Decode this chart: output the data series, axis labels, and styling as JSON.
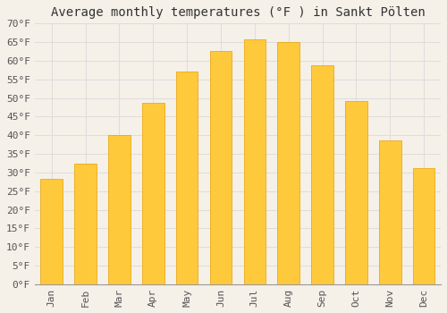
{
  "title": "Average monthly temperatures (°F ) in Sankt Pölten",
  "months": [
    "Jan",
    "Feb",
    "Mar",
    "Apr",
    "May",
    "Jun",
    "Jul",
    "Aug",
    "Sep",
    "Oct",
    "Nov",
    "Dec"
  ],
  "values": [
    28.4,
    32.5,
    40.1,
    48.6,
    57.0,
    62.6,
    65.8,
    65.1,
    58.8,
    49.3,
    38.7,
    31.3
  ],
  "bar_color_top": "#FFC93C",
  "bar_color_bottom": "#FFB300",
  "bar_edge_color": "#E8A000",
  "background_color": "#F5F0E8",
  "grid_color": "#DDDDDD",
  "ylim": [
    0,
    70
  ],
  "yticks": [
    0,
    5,
    10,
    15,
    20,
    25,
    30,
    35,
    40,
    45,
    50,
    55,
    60,
    65,
    70
  ],
  "title_fontsize": 10,
  "tick_fontsize": 8,
  "font_family": "monospace"
}
